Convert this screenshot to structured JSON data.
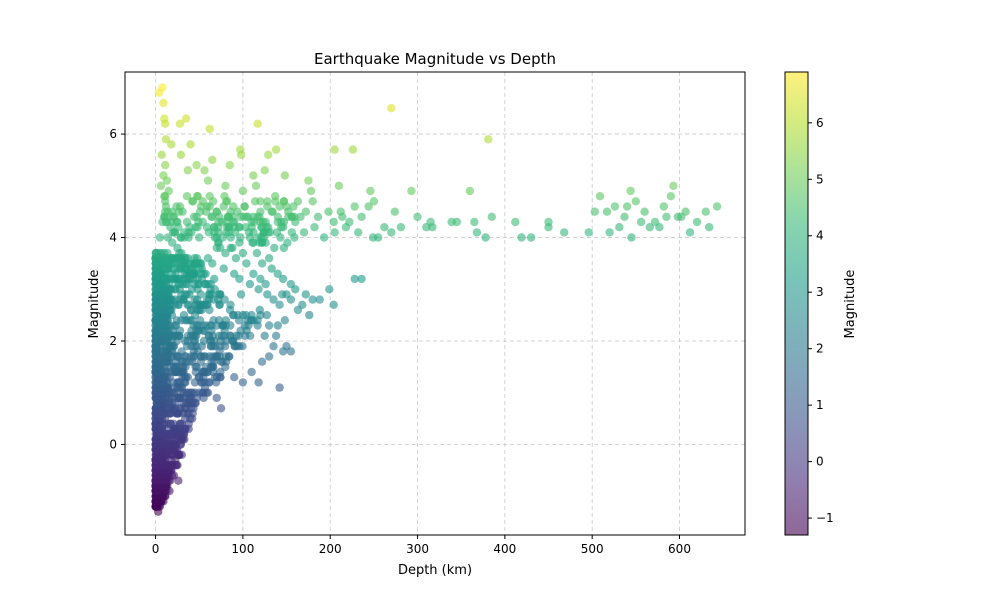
{
  "chart_data": {
    "type": "scatter",
    "title": "Earthquake Magnitude vs Depth",
    "xlabel": "Depth (km)",
    "ylabel": "Magnitude",
    "xlim": [
      -35,
      675
    ],
    "ylim": [
      -1.75,
      7.2
    ],
    "xticks": [
      0,
      100,
      200,
      300,
      400,
      500,
      600
    ],
    "yticks": [
      0,
      2,
      4,
      6
    ],
    "grid": true,
    "grid_style": "dashed",
    "colormap": "viridis",
    "color_by": "magnitude",
    "point_alpha": 0.6,
    "colorbar": {
      "label": "Magnitude",
      "range": [
        -1.3,
        6.9
      ],
      "ticks": [
        -1,
        0,
        1,
        2,
        3,
        4,
        5,
        6
      ]
    },
    "colormap_stops": [
      "#440154",
      "#482878",
      "#3e4989",
      "#31688e",
      "#26828e",
      "#1f9e89",
      "#35b779",
      "#6ece58",
      "#b5de2b",
      "#fde725"
    ],
    "points": [
      [
        8,
        6.9
      ],
      [
        4,
        6.8
      ],
      [
        9,
        6.6
      ],
      [
        10,
        6.3
      ],
      [
        11,
        6.2
      ],
      [
        35,
        6.3
      ],
      [
        28,
        6.2
      ],
      [
        62,
        6.1
      ],
      [
        117,
        6.2
      ],
      [
        270,
        6.5
      ],
      [
        381,
        5.9
      ],
      [
        12,
        5.9
      ],
      [
        18,
        5.8
      ],
      [
        40,
        5.8
      ],
      [
        97,
        5.7
      ],
      [
        138,
        5.7
      ],
      [
        205,
        5.7
      ],
      [
        226,
        5.7
      ],
      [
        129,
        5.6
      ],
      [
        98,
        5.6
      ],
      [
        29,
        5.6
      ],
      [
        65,
        5.5
      ],
      [
        85,
        5.4
      ],
      [
        47,
        5.4
      ],
      [
        56,
        5.3
      ],
      [
        37,
        5.3
      ],
      [
        125,
        5.3
      ],
      [
        148,
        5.2
      ],
      [
        175,
        5.1
      ],
      [
        112,
        5.2
      ],
      [
        115,
        5.0
      ],
      [
        210,
        5.0
      ],
      [
        60,
        5.1
      ],
      [
        80,
        5.0
      ],
      [
        100,
        4.9
      ],
      [
        178,
        4.9
      ],
      [
        246,
        4.9
      ],
      [
        293,
        4.9
      ],
      [
        360,
        4.9
      ],
      [
        544,
        4.9
      ],
      [
        593,
        5.0
      ],
      [
        509,
        4.8
      ],
      [
        137,
        4.8
      ],
      [
        163,
        4.7
      ],
      [
        180,
        4.7
      ],
      [
        250,
        4.7
      ],
      [
        228,
        4.6
      ],
      [
        212,
        4.5
      ],
      [
        274,
        4.5
      ],
      [
        300,
        4.4
      ],
      [
        315,
        4.3
      ],
      [
        345,
        4.3
      ],
      [
        365,
        4.3
      ],
      [
        385,
        4.4
      ],
      [
        412,
        4.3
      ],
      [
        450,
        4.3
      ],
      [
        503,
        4.5
      ],
      [
        517,
        4.5
      ],
      [
        526,
        4.6
      ],
      [
        540,
        4.6
      ],
      [
        550,
        4.7
      ],
      [
        560,
        4.5
      ],
      [
        572,
        4.3
      ],
      [
        582,
        4.6
      ],
      [
        590,
        4.8
      ],
      [
        602,
        4.4
      ],
      [
        607,
        4.5
      ],
      [
        620,
        4.3
      ],
      [
        630,
        4.5
      ],
      [
        643,
        4.6
      ],
      [
        634,
        4.2
      ],
      [
        531,
        4.2
      ],
      [
        537,
        4.4
      ],
      [
        556,
        4.3
      ],
      [
        566,
        4.2
      ],
      [
        577,
        4.2
      ],
      [
        585,
        4.4
      ],
      [
        598,
        4.4
      ],
      [
        612,
        4.1
      ],
      [
        545,
        4.0
      ],
      [
        520,
        4.1
      ],
      [
        496,
        4.1
      ],
      [
        468,
        4.1
      ],
      [
        450,
        4.2
      ],
      [
        430,
        4.0
      ],
      [
        419,
        4.0
      ],
      [
        378,
        4.0
      ],
      [
        368,
        4.1
      ],
      [
        339,
        4.3
      ],
      [
        317,
        4.2
      ],
      [
        310,
        4.2
      ],
      [
        281,
        4.2
      ],
      [
        270,
        4.1
      ],
      [
        262,
        4.2
      ],
      [
        255,
        4.0
      ],
      [
        249,
        4.0
      ],
      [
        232,
        4.1
      ],
      [
        218,
        4.2
      ],
      [
        205,
        4.1
      ],
      [
        193,
        4.0
      ],
      [
        182,
        4.2
      ],
      [
        170,
        4.1
      ],
      [
        160,
        4.3
      ],
      [
        146,
        4.2
      ],
      [
        131,
        4.1
      ],
      [
        118,
        4.0
      ],
      [
        107,
        4.1
      ],
      [
        96,
        4.2
      ],
      [
        84,
        4.1
      ],
      [
        72,
        4.2
      ],
      [
        61,
        4.1
      ],
      [
        50,
        4.0
      ],
      [
        20,
        4.4
      ],
      [
        28,
        4.6
      ],
      [
        36,
        4.3
      ],
      [
        44,
        4.4
      ],
      [
        52,
        4.6
      ],
      [
        64,
        4.4
      ],
      [
        70,
        4.5
      ],
      [
        76,
        4.3
      ],
      [
        88,
        4.4
      ],
      [
        94,
        4.5
      ],
      [
        104,
        4.4
      ],
      [
        120,
        4.5
      ],
      [
        126,
        4.3
      ],
      [
        140,
        4.4
      ],
      [
        152,
        4.5
      ],
      [
        166,
        4.4
      ],
      [
        172,
        4.5
      ],
      [
        186,
        4.4
      ],
      [
        198,
        4.5
      ],
      [
        204,
        4.3
      ],
      [
        214,
        4.4
      ],
      [
        222,
        4.3
      ],
      [
        236,
        4.4
      ],
      [
        244,
        4.6
      ],
      [
        10,
        4.8
      ],
      [
        14,
        4.5
      ],
      [
        17,
        4.2
      ],
      [
        22,
        4.1
      ],
      [
        25,
        4.3
      ],
      [
        31,
        4.5
      ],
      [
        33,
        4.1
      ],
      [
        39,
        4.2
      ],
      [
        42,
        4.7
      ],
      [
        46,
        4.2
      ],
      [
        48,
        4.8
      ],
      [
        54,
        4.3
      ],
      [
        58,
        4.5
      ],
      [
        67,
        4.2
      ],
      [
        78,
        4.6
      ],
      [
        82,
        4.7
      ],
      [
        90,
        4.2
      ],
      [
        102,
        4.6
      ],
      [
        110,
        4.3
      ],
      [
        114,
        4.7
      ],
      [
        122,
        4.2
      ],
      [
        134,
        4.5
      ],
      [
        144,
        4.3
      ],
      [
        156,
        4.1
      ],
      [
        158,
        4.6
      ],
      [
        5,
        4.0
      ],
      [
        8,
        4.3
      ],
      [
        12,
        4.6
      ],
      [
        6,
        5.0
      ],
      [
        9,
        5.2
      ],
      [
        11,
        5.4
      ],
      [
        7,
        5.6
      ],
      [
        13,
        5.1
      ],
      [
        15,
        4.9
      ],
      [
        10,
        4.4
      ],
      [
        14,
        4.0
      ],
      [
        70,
        3.8
      ],
      [
        72,
        3.9
      ],
      [
        80,
        3.7
      ],
      [
        86,
        3.8
      ],
      [
        92,
        3.6
      ],
      [
        100,
        3.7
      ],
      [
        104,
        3.5
      ],
      [
        116,
        3.7
      ],
      [
        122,
        3.5
      ],
      [
        133,
        3.4
      ],
      [
        140,
        3.3
      ],
      [
        146,
        3.2
      ],
      [
        155,
        3.1
      ],
      [
        160,
        3.0
      ],
      [
        172,
        2.9
      ],
      [
        180,
        2.8
      ],
      [
        188,
        2.8
      ],
      [
        199,
        3.0
      ],
      [
        204,
        2.7
      ],
      [
        228,
        3.2
      ],
      [
        236,
        3.2
      ],
      [
        130,
        3.6
      ],
      [
        112,
        3.3
      ],
      [
        96,
        3.2
      ],
      [
        60,
        3.6
      ],
      [
        65,
        3.5
      ],
      [
        78,
        3.4
      ],
      [
        90,
        3.3
      ],
      [
        120,
        3.2
      ],
      [
        126,
        3.1
      ],
      [
        118,
        3.0
      ],
      [
        108,
        3.1
      ],
      [
        98,
        2.9
      ],
      [
        145,
        2.9
      ],
      [
        150,
        2.9
      ],
      [
        135,
        2.8
      ],
      [
        128,
        2.9
      ],
      [
        142,
        2.7
      ],
      [
        155,
        2.8
      ],
      [
        163,
        2.6
      ],
      [
        176,
        2.5
      ],
      [
        168,
        2.7
      ],
      [
        100,
        2.5
      ],
      [
        110,
        2.4
      ],
      [
        120,
        2.5
      ],
      [
        130,
        2.3
      ],
      [
        140,
        2.3
      ],
      [
        148,
        2.4
      ],
      [
        138,
        2.1
      ],
      [
        125,
        2.1
      ],
      [
        135,
        1.9
      ],
      [
        146,
        1.8
      ],
      [
        155,
        1.8
      ],
      [
        150,
        1.9
      ],
      [
        122,
        1.6
      ],
      [
        130,
        1.7
      ],
      [
        110,
        1.4
      ],
      [
        118,
        1.2
      ],
      [
        100,
        1.2
      ],
      [
        90,
        1.3
      ],
      [
        142,
        1.1
      ],
      [
        60,
        1.0
      ],
      [
        70,
        0.9
      ],
      [
        75,
        0.7
      ],
      [
        55,
        0.9
      ],
      [
        52,
        1.2
      ],
      [
        46,
        0.8
      ],
      [
        38,
        0.3
      ],
      [
        34,
        0.3
      ],
      [
        28,
        0.2
      ],
      [
        30,
        -0.2
      ],
      [
        25,
        -0.4
      ],
      [
        21,
        -0.6
      ],
      [
        26,
        -0.7
      ],
      [
        18,
        -0.5
      ],
      [
        16,
        -0.9
      ],
      [
        12,
        -0.8
      ],
      [
        9,
        -1.1
      ],
      [
        5,
        -1.2
      ],
      [
        3,
        -1.3
      ],
      [
        2,
        -1.0
      ],
      [
        1,
        -0.7
      ],
      [
        4,
        -0.4
      ],
      [
        6,
        -0.2
      ],
      [
        8,
        -0.5
      ]
    ]
  }
}
